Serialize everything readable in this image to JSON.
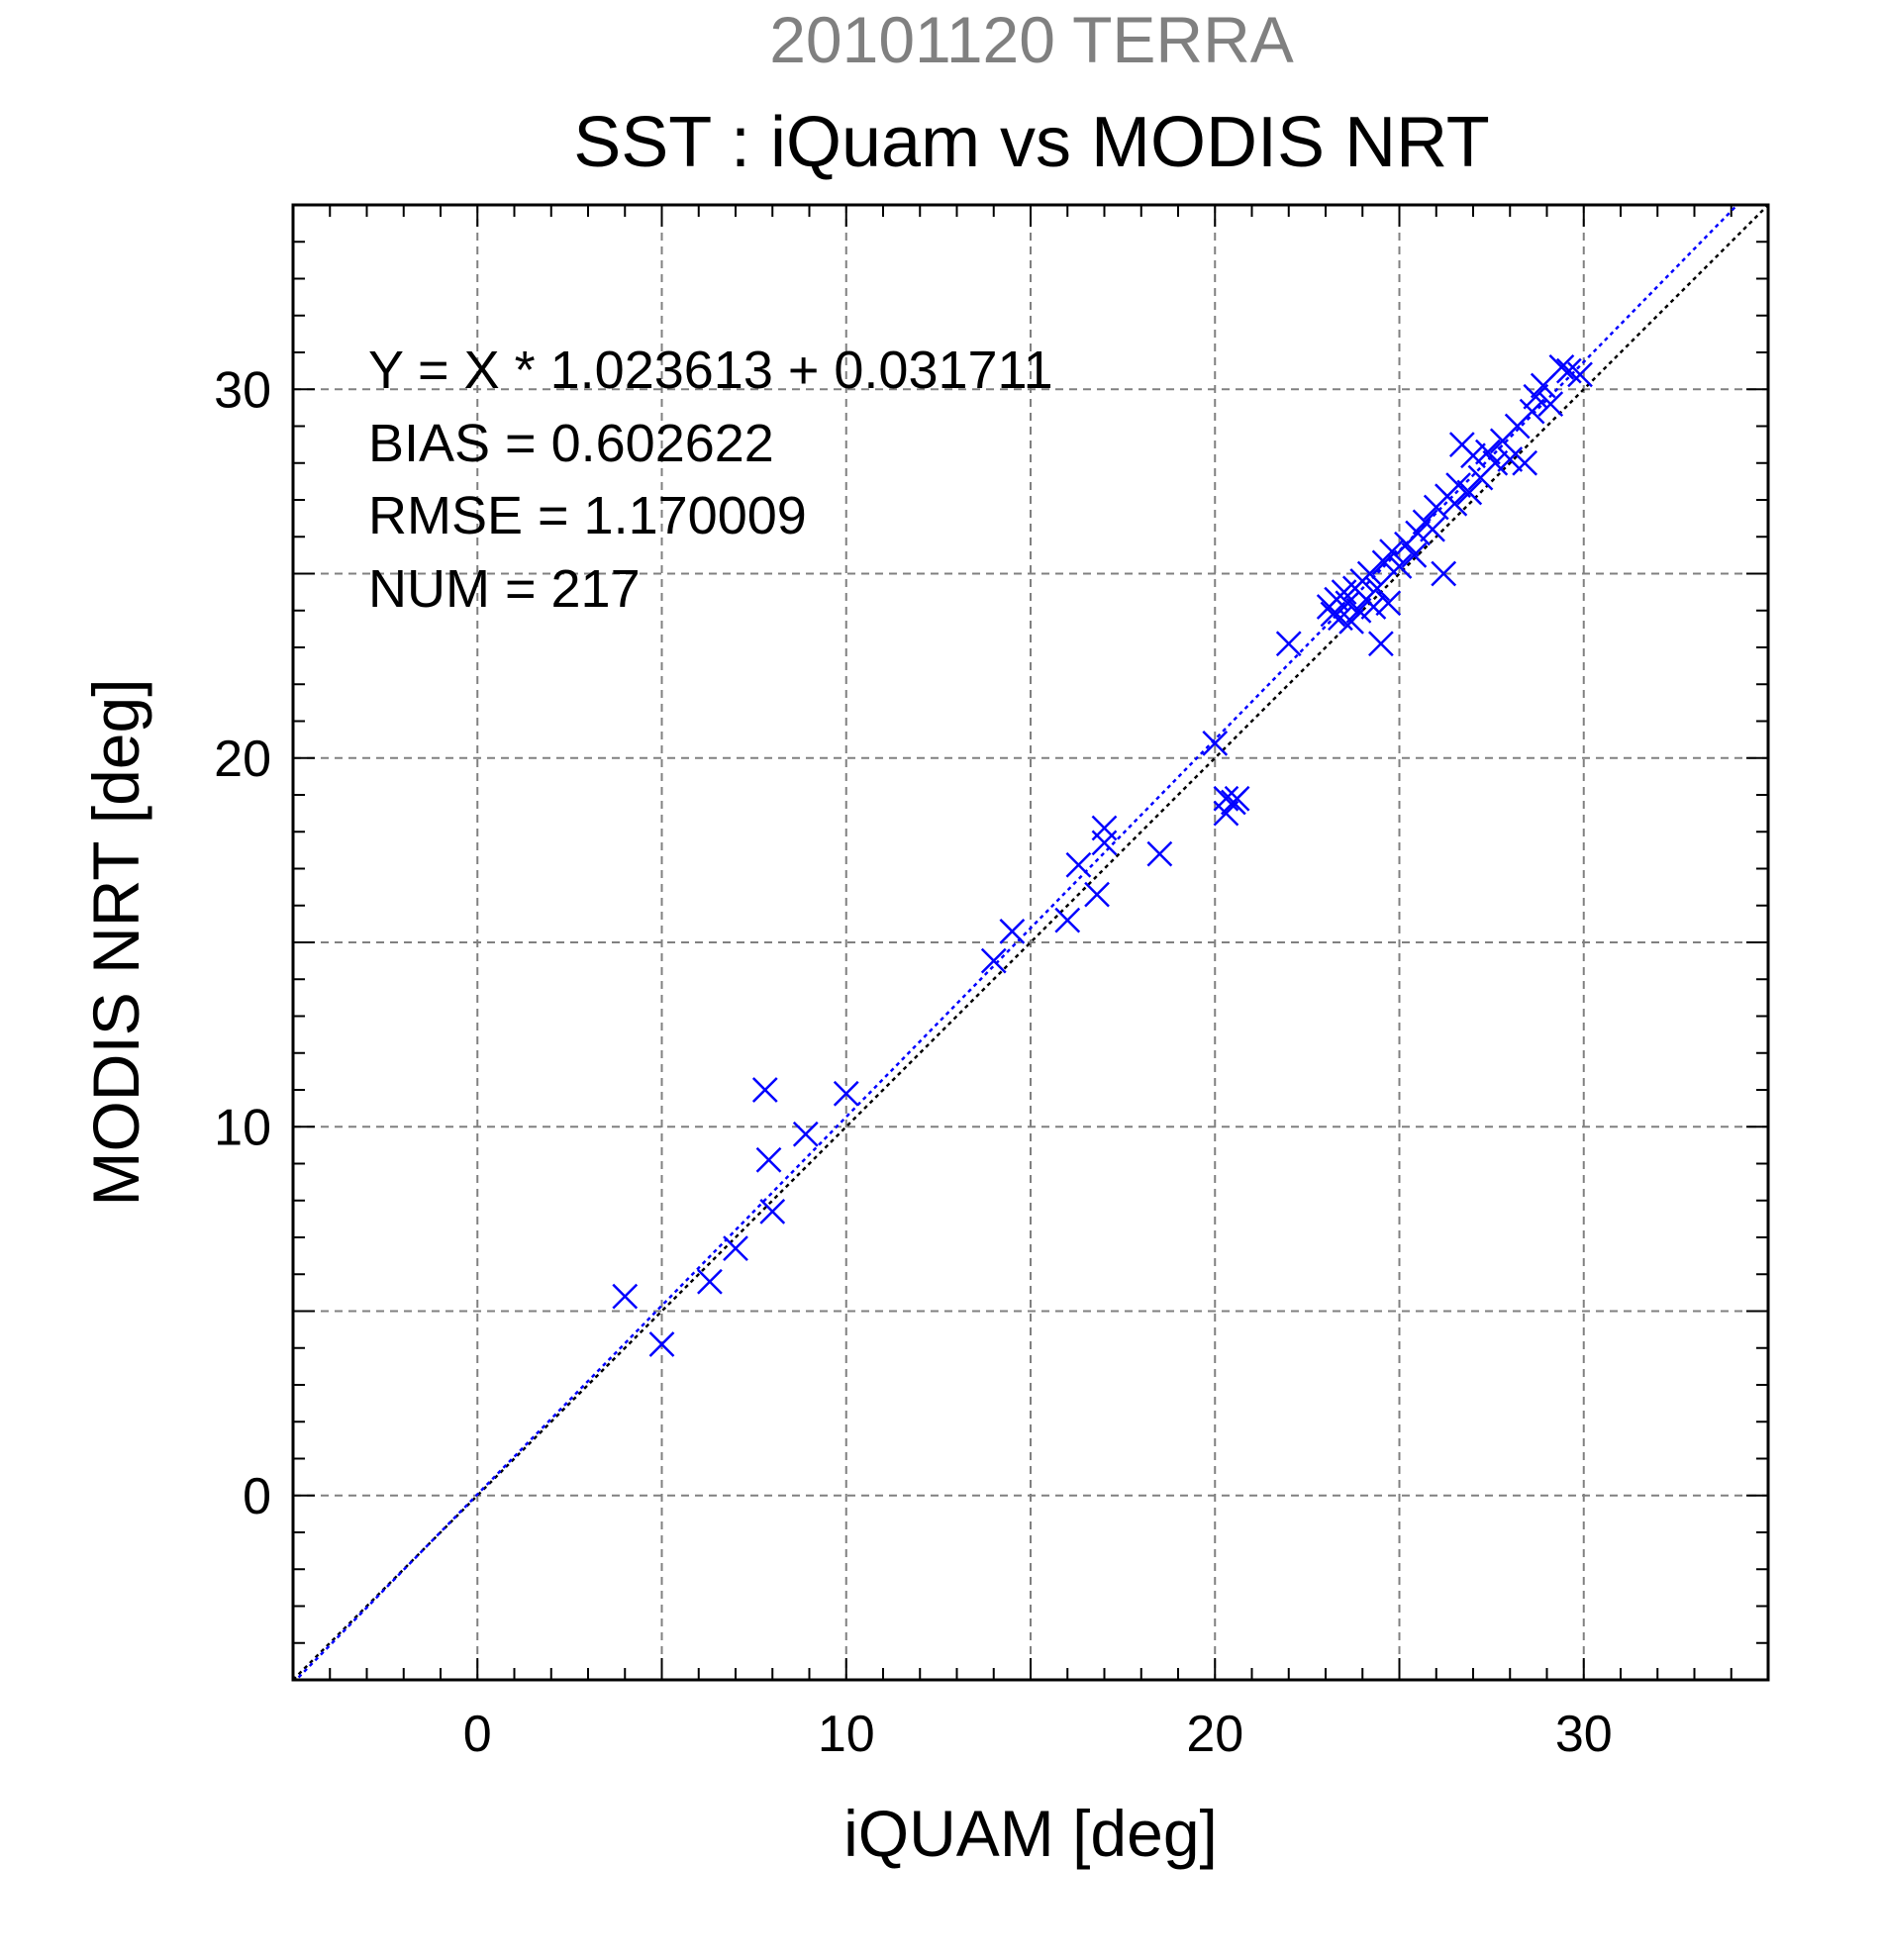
{
  "header": {
    "sup_title": "20101120 TERRA",
    "title": "SST : iQuam vs MODIS NRT"
  },
  "stats": {
    "equation": "Y = X * 1.023613 + 0.031711",
    "bias": "BIAS = 0.602622",
    "rmse": "RMSE = 1.170009",
    "num": "NUM = 217"
  },
  "colors": {
    "points": "#0000ff",
    "fit_line": "#0000ff",
    "identity_line": "#000000",
    "grid": "#808080"
  },
  "chart_data": {
    "type": "scatter",
    "xlabel": "iQUAM [deg]",
    "ylabel": "MODIS NRT [deg]",
    "xlim": [
      -5,
      35
    ],
    "ylim": [
      -5,
      35
    ],
    "xticks": [
      0,
      10,
      20,
      30
    ],
    "yticks": [
      0,
      10,
      20,
      30
    ],
    "grid": true,
    "marker": "x",
    "fit": {
      "slope": 1.023613,
      "intercept": 0.031711
    },
    "identity_line": true,
    "points": [
      [
        4.0,
        5.4
      ],
      [
        5.0,
        4.1
      ],
      [
        6.3,
        5.8
      ],
      [
        7.0,
        6.7
      ],
      [
        7.8,
        11.0
      ],
      [
        7.9,
        9.1
      ],
      [
        8.0,
        7.7
      ],
      [
        8.9,
        9.8
      ],
      [
        10.0,
        10.9
      ],
      [
        14.0,
        14.5
      ],
      [
        14.5,
        15.3
      ],
      [
        16.0,
        15.6
      ],
      [
        16.3,
        17.1
      ],
      [
        16.8,
        16.3
      ],
      [
        17.0,
        18.1
      ],
      [
        17.0,
        17.7
      ],
      [
        18.5,
        17.4
      ],
      [
        20.0,
        20.4
      ],
      [
        20.3,
        18.9
      ],
      [
        20.3,
        18.5
      ],
      [
        20.5,
        18.8
      ],
      [
        20.6,
        18.9
      ],
      [
        22.0,
        23.1
      ],
      [
        23.1,
        24.1
      ],
      [
        23.2,
        23.9
      ],
      [
        23.3,
        24.3
      ],
      [
        23.4,
        23.8
      ],
      [
        23.5,
        24.5
      ],
      [
        23.6,
        24.2
      ],
      [
        23.7,
        23.7
      ],
      [
        23.8,
        24.6
      ],
      [
        23.9,
        24.0
      ],
      [
        24.0,
        24.8
      ],
      [
        24.1,
        24.3
      ],
      [
        24.2,
        25.0
      ],
      [
        24.3,
        24.1
      ],
      [
        24.4,
        24.6
      ],
      [
        24.5,
        23.1
      ],
      [
        24.6,
        25.3
      ],
      [
        24.7,
        24.2
      ],
      [
        24.8,
        25.6
      ],
      [
        25.0,
        25.2
      ],
      [
        25.2,
        25.8
      ],
      [
        25.4,
        25.5
      ],
      [
        25.5,
        26.1
      ],
      [
        25.7,
        26.4
      ],
      [
        25.9,
        26.2
      ],
      [
        26.0,
        26.8
      ],
      [
        26.2,
        25.0
      ],
      [
        26.3,
        27.1
      ],
      [
        26.5,
        26.9
      ],
      [
        26.6,
        27.4
      ],
      [
        26.7,
        28.5
      ],
      [
        26.9,
        27.2
      ],
      [
        27.0,
        28.2
      ],
      [
        27.2,
        27.6
      ],
      [
        27.4,
        28.3
      ],
      [
        27.6,
        28.0
      ],
      [
        27.8,
        28.6
      ],
      [
        28.0,
        28.1
      ],
      [
        28.2,
        29.0
      ],
      [
        28.4,
        28.0
      ],
      [
        28.6,
        29.4
      ],
      [
        28.7,
        29.8
      ],
      [
        28.9,
        30.1
      ],
      [
        29.1,
        29.6
      ],
      [
        29.4,
        30.6
      ],
      [
        29.6,
        30.5
      ],
      [
        29.9,
        30.4
      ]
    ]
  }
}
